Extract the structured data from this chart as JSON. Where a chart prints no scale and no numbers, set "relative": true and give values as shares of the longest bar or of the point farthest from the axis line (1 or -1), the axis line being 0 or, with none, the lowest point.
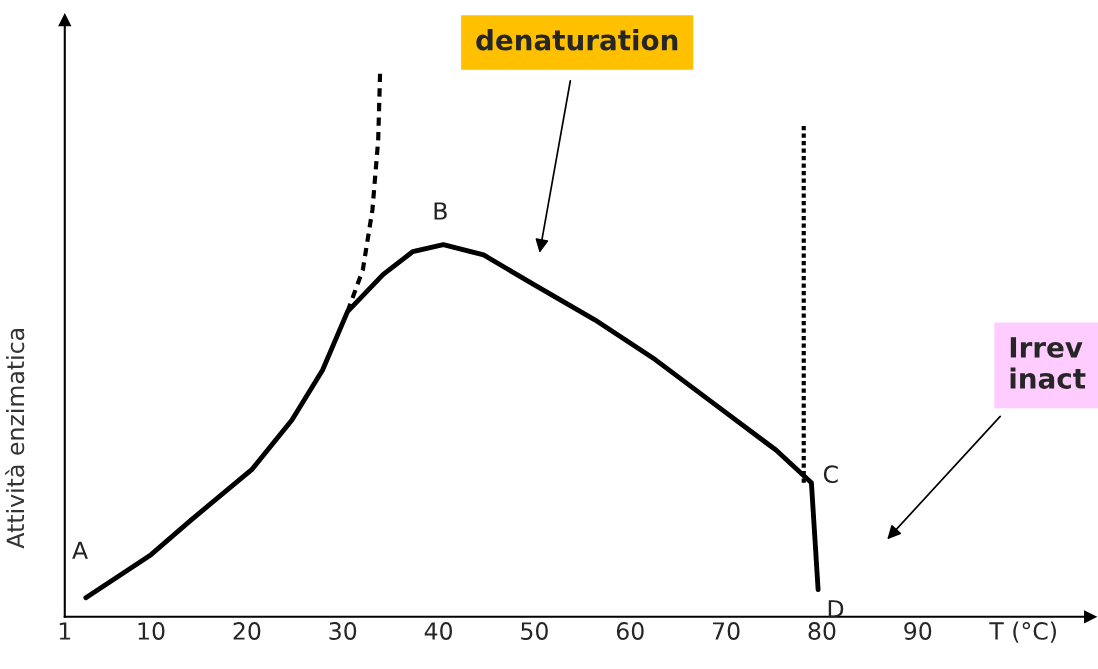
{
  "chart_data": {
    "type": "line",
    "relative": true,
    "xlabel": "T (°C)",
    "ylabel": "Attività enzimatica",
    "xlim": [
      1,
      108
    ],
    "xticks": [
      1,
      10,
      20,
      30,
      40,
      50,
      60,
      70,
      80,
      90
    ],
    "grid": false,
    "legend": false,
    "marker": "none",
    "series": [
      {
        "color": "#000000",
        "line_style": "solid",
        "x": [
          3.2,
          10,
          14.2,
          20.5,
          24.7,
          27.9,
          30.5,
          34.2,
          37.3,
          40.5,
          44.7,
          50,
          56.3,
          62.6,
          68.9,
          75.2,
          78.9,
          79.6
        ],
        "values": [
          0.035,
          0.114,
          0.178,
          0.27,
          0.361,
          0.453,
          0.56,
          0.628,
          0.67,
          0.683,
          0.664,
          0.609,
          0.545,
          0.472,
          0.389,
          0.306,
          0.246,
          0.05
        ]
      },
      {
        "color": "#000000",
        "line_style": "dashed",
        "x": [
          30.5,
          32.1,
          33.1,
          33.7,
          33.9
        ],
        "values": [
          0.56,
          0.637,
          0.747,
          0.875,
          1.0
        ]
      },
      {
        "color": "#000000",
        "line_style": "dotted",
        "x": [
          78.1,
          78.1
        ],
        "values": [
          0.246,
          0.903
        ]
      }
    ],
    "annotations": [
      {
        "text": "A",
        "x": 3.2,
        "y": 0.035
      },
      {
        "text": "B",
        "x": 40.5,
        "y": 0.683
      },
      {
        "text": "C",
        "x": 78.9,
        "y": 0.246
      },
      {
        "text": "D",
        "x": 79.6,
        "y": 0.05
      },
      "denaturation",
      "Irrev\ninact"
    ]
  }
}
